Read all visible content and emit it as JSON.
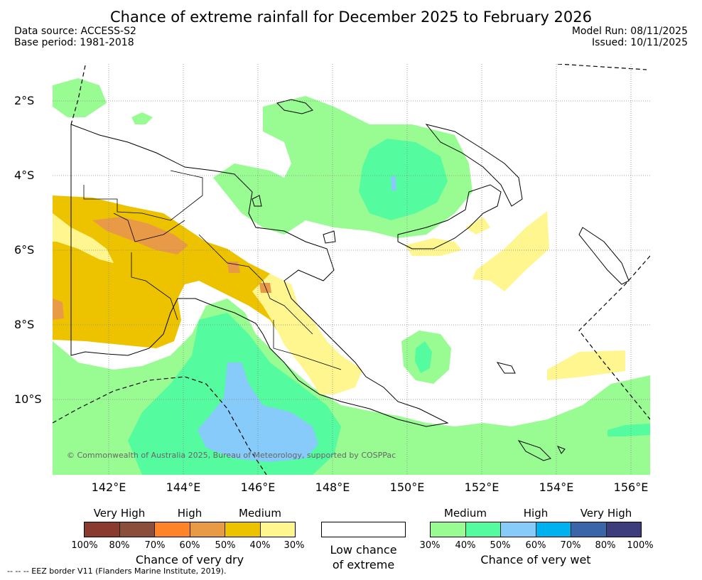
{
  "title": "Chance of extreme rainfall for December 2025 to February 2026",
  "meta": {
    "data_source": "Data source: ACCESS-S2",
    "base_period": "Base period: 1981-2018",
    "model_run": "Model Run: 08/11/2025",
    "issued": "Issued: 10/11/2025"
  },
  "axes": {
    "lat_labels": [
      "2°S",
      "4°S",
      "6°S",
      "8°S",
      "10°S"
    ],
    "lon_labels": [
      "142°E",
      "144°E",
      "146°E",
      "148°E",
      "150°E",
      "152°E",
      "154°E",
      "156°E"
    ]
  },
  "copyright": "© Commonwealth of Australia 2025, Bureau of Meteorology, supported by COSPPac",
  "legend": {
    "dry": {
      "levels": [
        "Very High",
        "High",
        "Medium"
      ],
      "title": "Chance of very dry",
      "colors": [
        "#8b3a2f",
        "#8a4e3a",
        "#ff8429",
        "#e99a47",
        "#edc300",
        "#fff68f"
      ],
      "ticks": [
        "100%",
        "80%",
        "70%",
        "60%",
        "50%",
        "40%",
        "30%"
      ]
    },
    "neutral": {
      "title_line1": "Low chance",
      "title_line2": "of extreme"
    },
    "wet": {
      "levels": [
        "Medium",
        "High",
        "Very High"
      ],
      "title": "Chance of very wet",
      "colors": [
        "#99fc92",
        "#55fb9f",
        "#87cbfa",
        "#00b1ef",
        "#3a65a8",
        "#3d3c7c"
      ],
      "ticks": [
        "30%",
        "40%",
        "50%",
        "60%",
        "70%",
        "80%",
        "100%"
      ]
    }
  },
  "footnote": "--  --  -- EEZ border V11 (Flanders Marine Institute, 2019)."
}
